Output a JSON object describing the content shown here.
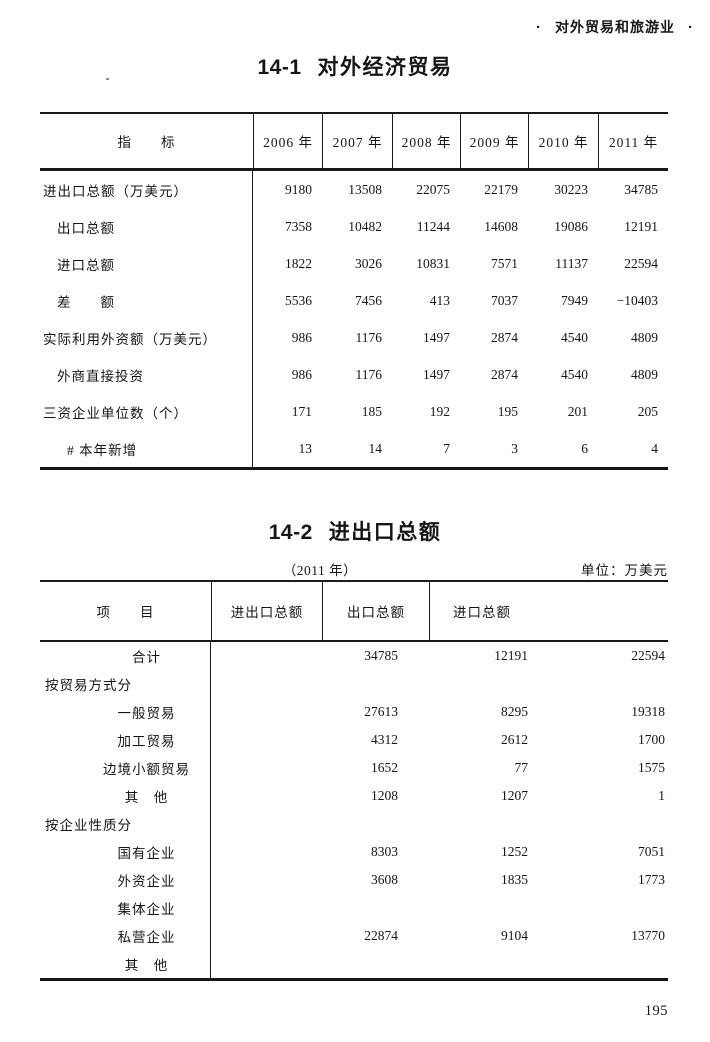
{
  "page": {
    "running_header": "对外贸易和旅游业",
    "bullet": "·",
    "page_number": "195"
  },
  "table1": {
    "title_no": "14-1",
    "title": "对外经济贸易",
    "stub_header": "指　　标",
    "years": [
      "2006 年",
      "2007 年",
      "2008 年",
      "2009 年",
      "2010 年",
      "2011 年"
    ],
    "rows": [
      {
        "label": "进出口总额（万美元）",
        "values": [
          "9180",
          "13508",
          "22075",
          "22179",
          "30223",
          "34785"
        ]
      },
      {
        "label": "出口总额",
        "values": [
          "7358",
          "10482",
          "11244",
          "14608",
          "19086",
          "12191"
        ]
      },
      {
        "label": "进口总额",
        "values": [
          "1822",
          "3026",
          "10831",
          "7571",
          "11137",
          "22594"
        ]
      },
      {
        "label": "差　　额",
        "values": [
          "5536",
          "7456",
          "413",
          "7037",
          "7949",
          "−10403"
        ]
      },
      {
        "label": "实际利用外资额（万美元）",
        "values": [
          "986",
          "1176",
          "1497",
          "2874",
          "4540",
          "4809"
        ]
      },
      {
        "label": "外商直接投资",
        "values": [
          "986",
          "1176",
          "1497",
          "2874",
          "4540",
          "4809"
        ]
      },
      {
        "label": "三资企业单位数（个）",
        "values": [
          "171",
          "185",
          "192",
          "195",
          "201",
          "205"
        ]
      },
      {
        "label": "# 本年新增",
        "values": [
          "13",
          "14",
          "7",
          "3",
          "6",
          "4"
        ]
      }
    ]
  },
  "table2": {
    "title_no": "14-2",
    "title": "进出口总额",
    "subtitle": "（2011 年）",
    "unit_note": "单位：万美元",
    "stub_header": "项　　目",
    "columns": [
      "进出口总额",
      "出口总额",
      "进口总额"
    ],
    "rows": [
      {
        "label": "合计",
        "values": [
          "34785",
          "12191",
          "22594"
        ]
      },
      {
        "label": "按贸易方式分",
        "values": [
          "",
          "",
          ""
        ]
      },
      {
        "label": "一般贸易",
        "values": [
          "27613",
          "8295",
          "19318"
        ]
      },
      {
        "label": "加工贸易",
        "values": [
          "4312",
          "2612",
          "1700"
        ]
      },
      {
        "label": "边境小额贸易",
        "values": [
          "1652",
          "77",
          "1575"
        ]
      },
      {
        "label": "其　他",
        "values": [
          "1208",
          "1207",
          "1"
        ]
      },
      {
        "label": "按企业性质分",
        "values": [
          "",
          "",
          ""
        ]
      },
      {
        "label": "国有企业",
        "values": [
          "8303",
          "1252",
          "7051"
        ]
      },
      {
        "label": "外资企业",
        "values": [
          "3608",
          "1835",
          "1773"
        ]
      },
      {
        "label": "集体企业",
        "values": [
          "",
          "",
          ""
        ]
      },
      {
        "label": "私营企业",
        "values": [
          "22874",
          "9104",
          "13770"
        ]
      },
      {
        "label": "其　他",
        "values": [
          "",
          "",
          ""
        ]
      }
    ]
  }
}
